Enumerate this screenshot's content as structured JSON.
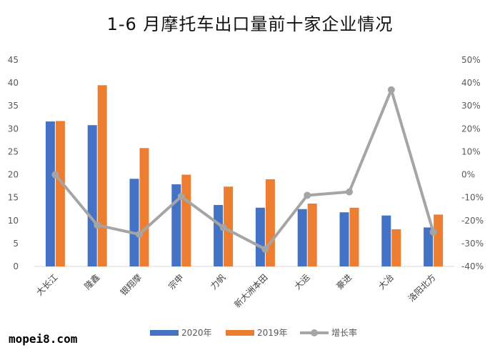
{
  "watermark": "mopei8.com",
  "chart_data": {
    "type": "bar",
    "title": "1-6 月摩托车出口量前十家企业情况",
    "categories": [
      "大长江",
      "隆鑫",
      "银翔摩",
      "宗申",
      "力帆",
      "新大洲本田",
      "大运",
      "豪进",
      "大冶",
      "洛阳北方"
    ],
    "series": [
      {
        "name": "2020年",
        "type": "bar",
        "axis": "left",
        "color": "#4472C4",
        "values": [
          31.6,
          30.8,
          19.1,
          17.9,
          13.4,
          12.8,
          12.5,
          11.8,
          11.1,
          8.5
        ]
      },
      {
        "name": "2019年",
        "type": "bar",
        "axis": "left",
        "color": "#ED7D31",
        "values": [
          31.7,
          39.5,
          25.8,
          20.0,
          17.4,
          19.0,
          13.7,
          12.8,
          8.1,
          11.3
        ]
      },
      {
        "name": "增长率",
        "type": "line",
        "axis": "right",
        "color": "#A5A5A5",
        "values": [
          0.0,
          -22.0,
          -26.0,
          -9.5,
          -23.0,
          -32.5,
          -9.0,
          -7.5,
          37.0,
          -25.0
        ]
      }
    ],
    "y_left": {
      "ylim": [
        0,
        45
      ],
      "ticks": [
        "0",
        "5",
        "10",
        "15",
        "20",
        "25",
        "30",
        "35",
        "40",
        "45"
      ]
    },
    "y_right": {
      "ylim": [
        -40,
        50
      ],
      "ticks": [
        "-40%",
        "-30%",
        "-20%",
        "-10%",
        "0%",
        "10%",
        "20%",
        "30%",
        "40%",
        "50%"
      ]
    },
    "grid": false,
    "legend": "bottom"
  }
}
